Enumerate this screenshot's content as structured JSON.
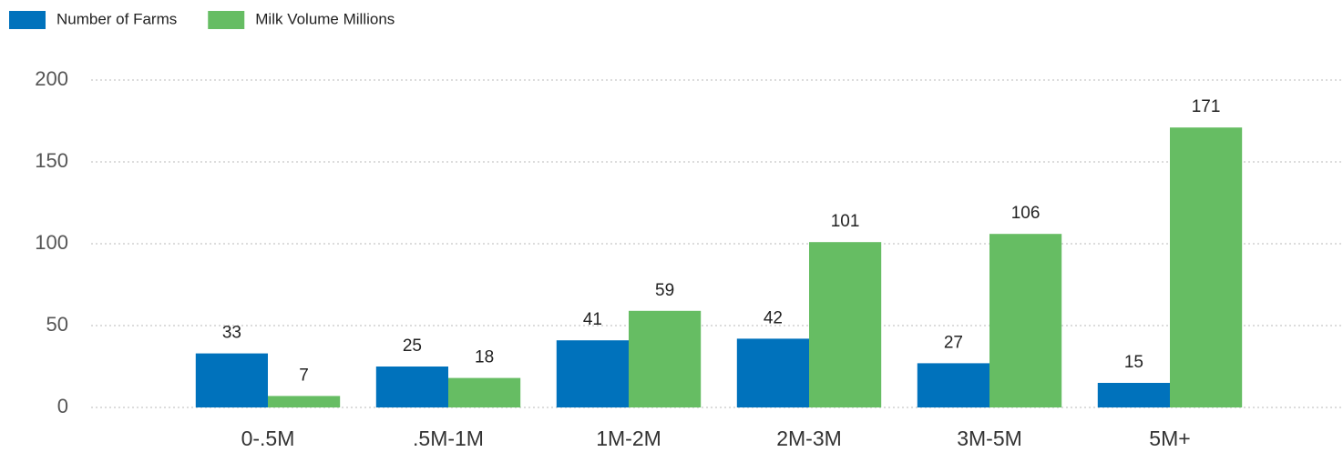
{
  "chart_data": {
    "type": "bar",
    "categories": [
      "0-.5M",
      ".5M-1M",
      "1M-2M",
      "2M-3M",
      "3M-5M",
      "5M+"
    ],
    "series": [
      {
        "name": "Number of Farms",
        "color": "#0072bc",
        "values": [
          33,
          25,
          41,
          42,
          27,
          15
        ]
      },
      {
        "name": "Milk Volume Millions",
        "color": "#66bd63",
        "values": [
          7,
          18,
          59,
          101,
          106,
          171
        ]
      }
    ],
    "ylim": [
      0,
      200
    ],
    "yticks": [
      0,
      50,
      100,
      150,
      200
    ],
    "grid": true,
    "legend": "top-left"
  }
}
